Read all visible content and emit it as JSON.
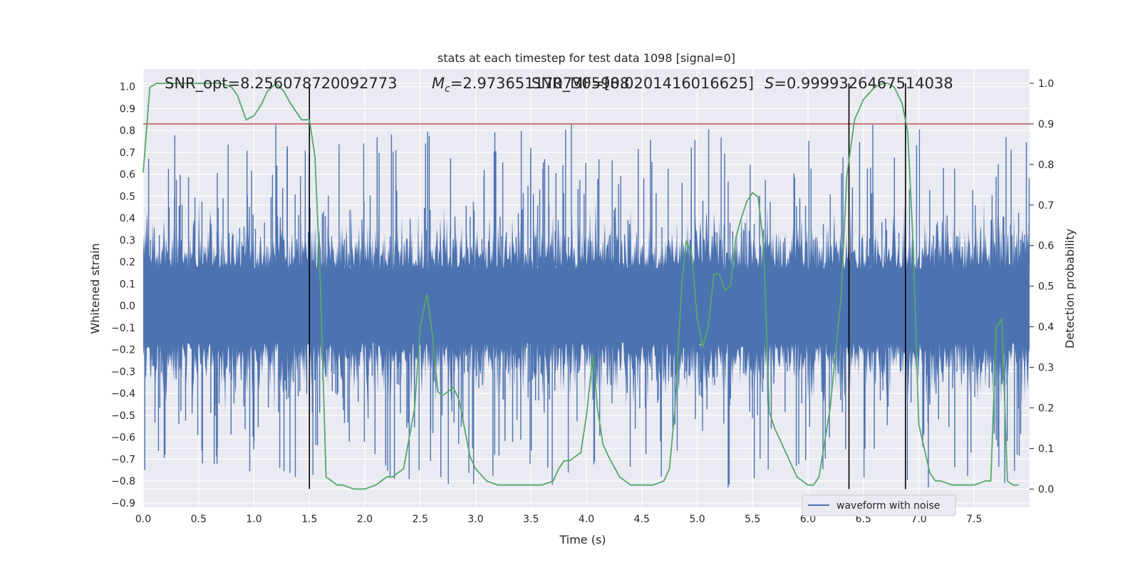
{
  "chart_data": {
    "type": "line",
    "title": "stats at each timestep for test data 1098 [signal=0]",
    "xlabel": "Time (s)",
    "ylabel": "Whitened strain",
    "y2label": "Detection probability",
    "xlim": [
      0.0,
      8.0
    ],
    "ylim": [
      -0.92,
      1.08
    ],
    "y2lim": [
      -0.045,
      1.035
    ],
    "x_ticks": [
      "0.0",
      "0.5",
      "1.0",
      "1.5",
      "2.0",
      "2.5",
      "3.0",
      "3.5",
      "4.0",
      "4.5",
      "5.0",
      "5.5",
      "6.0",
      "6.5",
      "7.0",
      "7.5"
    ],
    "y_ticks": [
      "1.0",
      "0.9",
      "0.8",
      "0.7",
      "0.6",
      "0.5",
      "0.4",
      "0.3",
      "0.2",
      "0.1",
      "0.0",
      "−0.1",
      "−0.2",
      "−0.3",
      "−0.4",
      "−0.5",
      "−0.6",
      "−0.7",
      "−0.8",
      "−0.9"
    ],
    "y2_ticks": [
      "1.0",
      "0.9",
      "0.8",
      "0.7",
      "0.6",
      "0.5",
      "0.4",
      "0.3",
      "0.2",
      "0.1",
      "0.0"
    ],
    "grid": true,
    "legend": {
      "position": "lower-right",
      "entries": [
        "waveform with noise"
      ]
    },
    "annotations": {
      "snr_opt": "SNR_opt=8.256078720092773",
      "mc_label": "M",
      "mc_sub": "c",
      "mc_value": "=2.9736511707305908",
      "snr_mf": "SNR_MF=[8.0201416016625]",
      "s_label": "S",
      "s_value": "=0.9999326467514038"
    },
    "threshold": {
      "value": 0.9,
      "axis": "y2",
      "color": "#c44e52"
    },
    "vertical_markers": [
      1.5,
      6.37,
      6.88
    ],
    "waveform": {
      "name": "waveform with noise",
      "color": "#4c72b0",
      "typical_amplitude": 0.3,
      "max": 0.83,
      "min": -0.83
    },
    "probability": {
      "color": "#55a868",
      "x": [
        0.0,
        0.06,
        0.12,
        0.2,
        0.3,
        0.4,
        0.5,
        0.6,
        0.7,
        0.8,
        0.85,
        0.93,
        1.0,
        1.07,
        1.12,
        1.2,
        1.27,
        1.33,
        1.38,
        1.43,
        1.5,
        1.55,
        1.6,
        1.65,
        1.7,
        1.75,
        1.8,
        1.9,
        2.0,
        2.1,
        2.15,
        2.2,
        2.25,
        2.3,
        2.35,
        2.45,
        2.5,
        2.56,
        2.61,
        2.66,
        2.7,
        2.75,
        2.8,
        2.85,
        2.9,
        2.95,
        3.0,
        3.1,
        3.2,
        3.3,
        3.4,
        3.5,
        3.6,
        3.7,
        3.75,
        3.8,
        3.85,
        3.9,
        3.95,
        4.0,
        4.06,
        4.1,
        4.15,
        4.2,
        4.3,
        4.4,
        4.5,
        4.6,
        4.7,
        4.75,
        4.8,
        4.86,
        4.9,
        4.95,
        5.0,
        5.05,
        5.1,
        5.15,
        5.2,
        5.25,
        5.3,
        5.35,
        5.4,
        5.45,
        5.5,
        5.55,
        5.6,
        5.65,
        5.7,
        5.8,
        5.9,
        6.0,
        6.05,
        6.1,
        6.2,
        6.3,
        6.35,
        6.42,
        6.5,
        6.6,
        6.68,
        6.72,
        6.78,
        6.85,
        6.9,
        6.95,
        7.0,
        7.1,
        7.15,
        7.2,
        7.3,
        7.4,
        7.5,
        7.6,
        7.65,
        7.7,
        7.75,
        7.8,
        7.85,
        7.9
      ],
      "y": [
        0.78,
        0.99,
        1.0,
        1.0,
        1.0,
        1.0,
        1.0,
        1.0,
        1.0,
        0.99,
        0.97,
        0.91,
        0.92,
        0.95,
        0.98,
        1.0,
        0.98,
        0.95,
        0.93,
        0.91,
        0.91,
        0.82,
        0.5,
        0.03,
        0.02,
        0.01,
        0.01,
        0.0,
        0.0,
        0.01,
        0.02,
        0.03,
        0.03,
        0.04,
        0.05,
        0.2,
        0.4,
        0.48,
        0.38,
        0.24,
        0.23,
        0.24,
        0.25,
        0.22,
        0.15,
        0.08,
        0.05,
        0.02,
        0.01,
        0.01,
        0.01,
        0.01,
        0.01,
        0.02,
        0.05,
        0.07,
        0.07,
        0.08,
        0.09,
        0.18,
        0.33,
        0.2,
        0.11,
        0.08,
        0.03,
        0.01,
        0.01,
        0.01,
        0.02,
        0.05,
        0.2,
        0.5,
        0.61,
        0.58,
        0.42,
        0.35,
        0.4,
        0.53,
        0.53,
        0.49,
        0.5,
        0.62,
        0.67,
        0.71,
        0.73,
        0.72,
        0.6,
        0.19,
        0.15,
        0.09,
        0.03,
        0.01,
        0.01,
        0.03,
        0.2,
        0.48,
        0.77,
        0.91,
        0.96,
        0.99,
        1.0,
        1.0,
        0.99,
        0.95,
        0.88,
        0.6,
        0.16,
        0.04,
        0.02,
        0.02,
        0.01,
        0.01,
        0.01,
        0.02,
        0.02,
        0.4,
        0.42,
        0.02,
        0.01,
        0.01
      ]
    }
  }
}
